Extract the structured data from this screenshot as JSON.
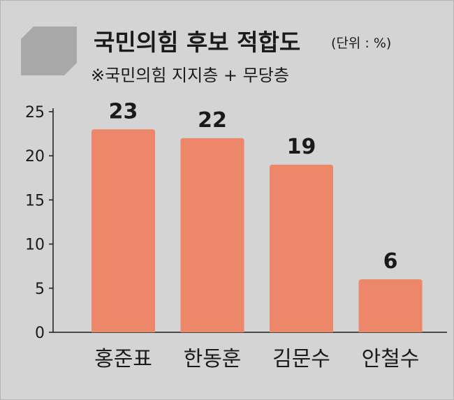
{
  "header": {
    "title": "국민의힘 후보 적합도",
    "unit": "(단위 : %)",
    "subtitle": "※국민의힘 지지층 + 무당층"
  },
  "colors": {
    "background": "#d4d4d4",
    "bar": "#ed8769",
    "logo": "#a8a8a8"
  },
  "chart_data": {
    "type": "bar",
    "title": "국민의힘 후보 적합도",
    "categories": [
      "홍준표",
      "한동훈",
      "김문수",
      "안철수"
    ],
    "values": [
      23,
      22,
      19,
      6
    ],
    "ylim": [
      0,
      25
    ],
    "yticks": [
      0,
      5,
      10,
      15,
      20,
      25
    ],
    "grid": false
  }
}
